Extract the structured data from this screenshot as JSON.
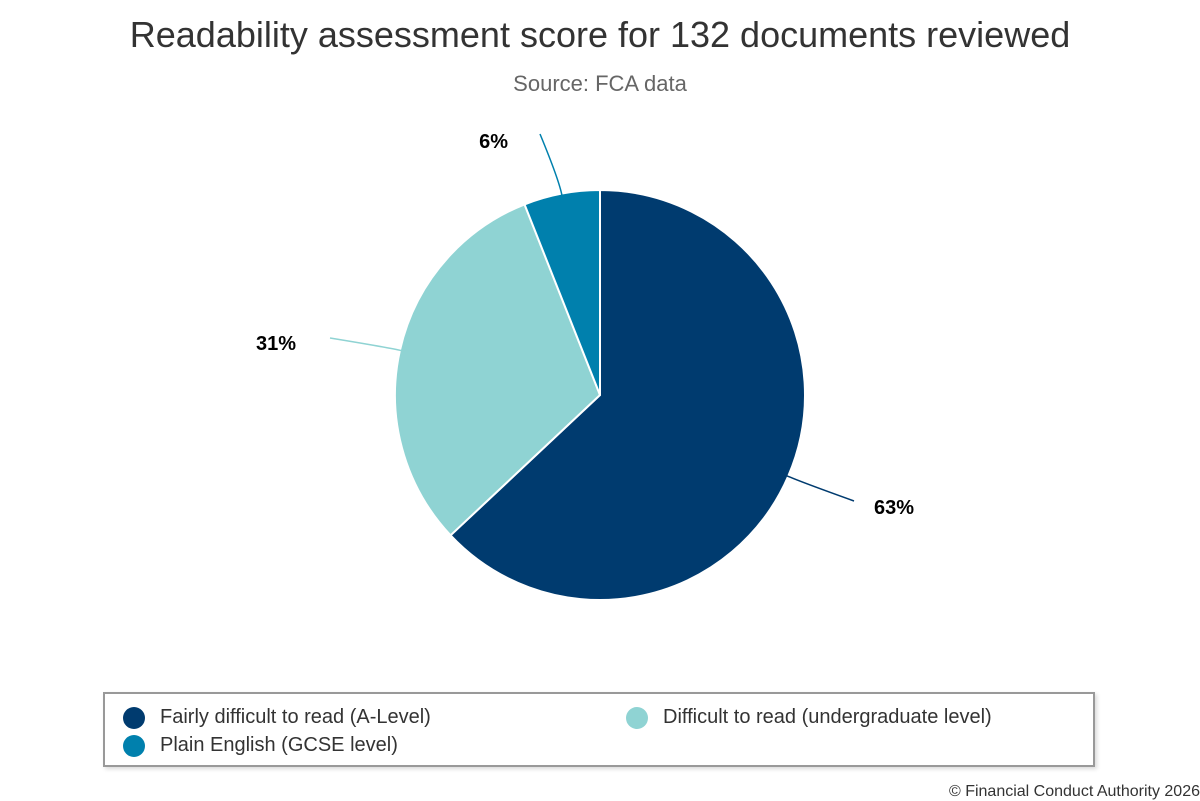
{
  "chart_data": {
    "type": "pie",
    "title": "Readability assessment score for 132 documents reviewed",
    "subtitle": "Source: FCA data",
    "slices": [
      {
        "name": "Fairly difficult to read (A-Level)",
        "value": 63,
        "label": "63%",
        "color": "#003b6f"
      },
      {
        "name": "Difficult to read (undergraduate level)",
        "value": 31,
        "label": "31%",
        "color": "#8fd3d3"
      },
      {
        "name": "Plain English (GCSE level)",
        "value": 6,
        "label": "6%",
        "color": "#0080ad"
      }
    ],
    "legend": {
      "placement": "bottom",
      "items": [
        {
          "label": "Fairly difficult to read (A-Level)",
          "color": "#003b6f"
        },
        {
          "label": "Difficult to read (undergraduate level)",
          "color": "#8fd3d3"
        },
        {
          "label": "Plain English (GCSE level)",
          "color": "#0080ad"
        }
      ]
    },
    "credits": "© Financial Conduct Authority 2026"
  }
}
